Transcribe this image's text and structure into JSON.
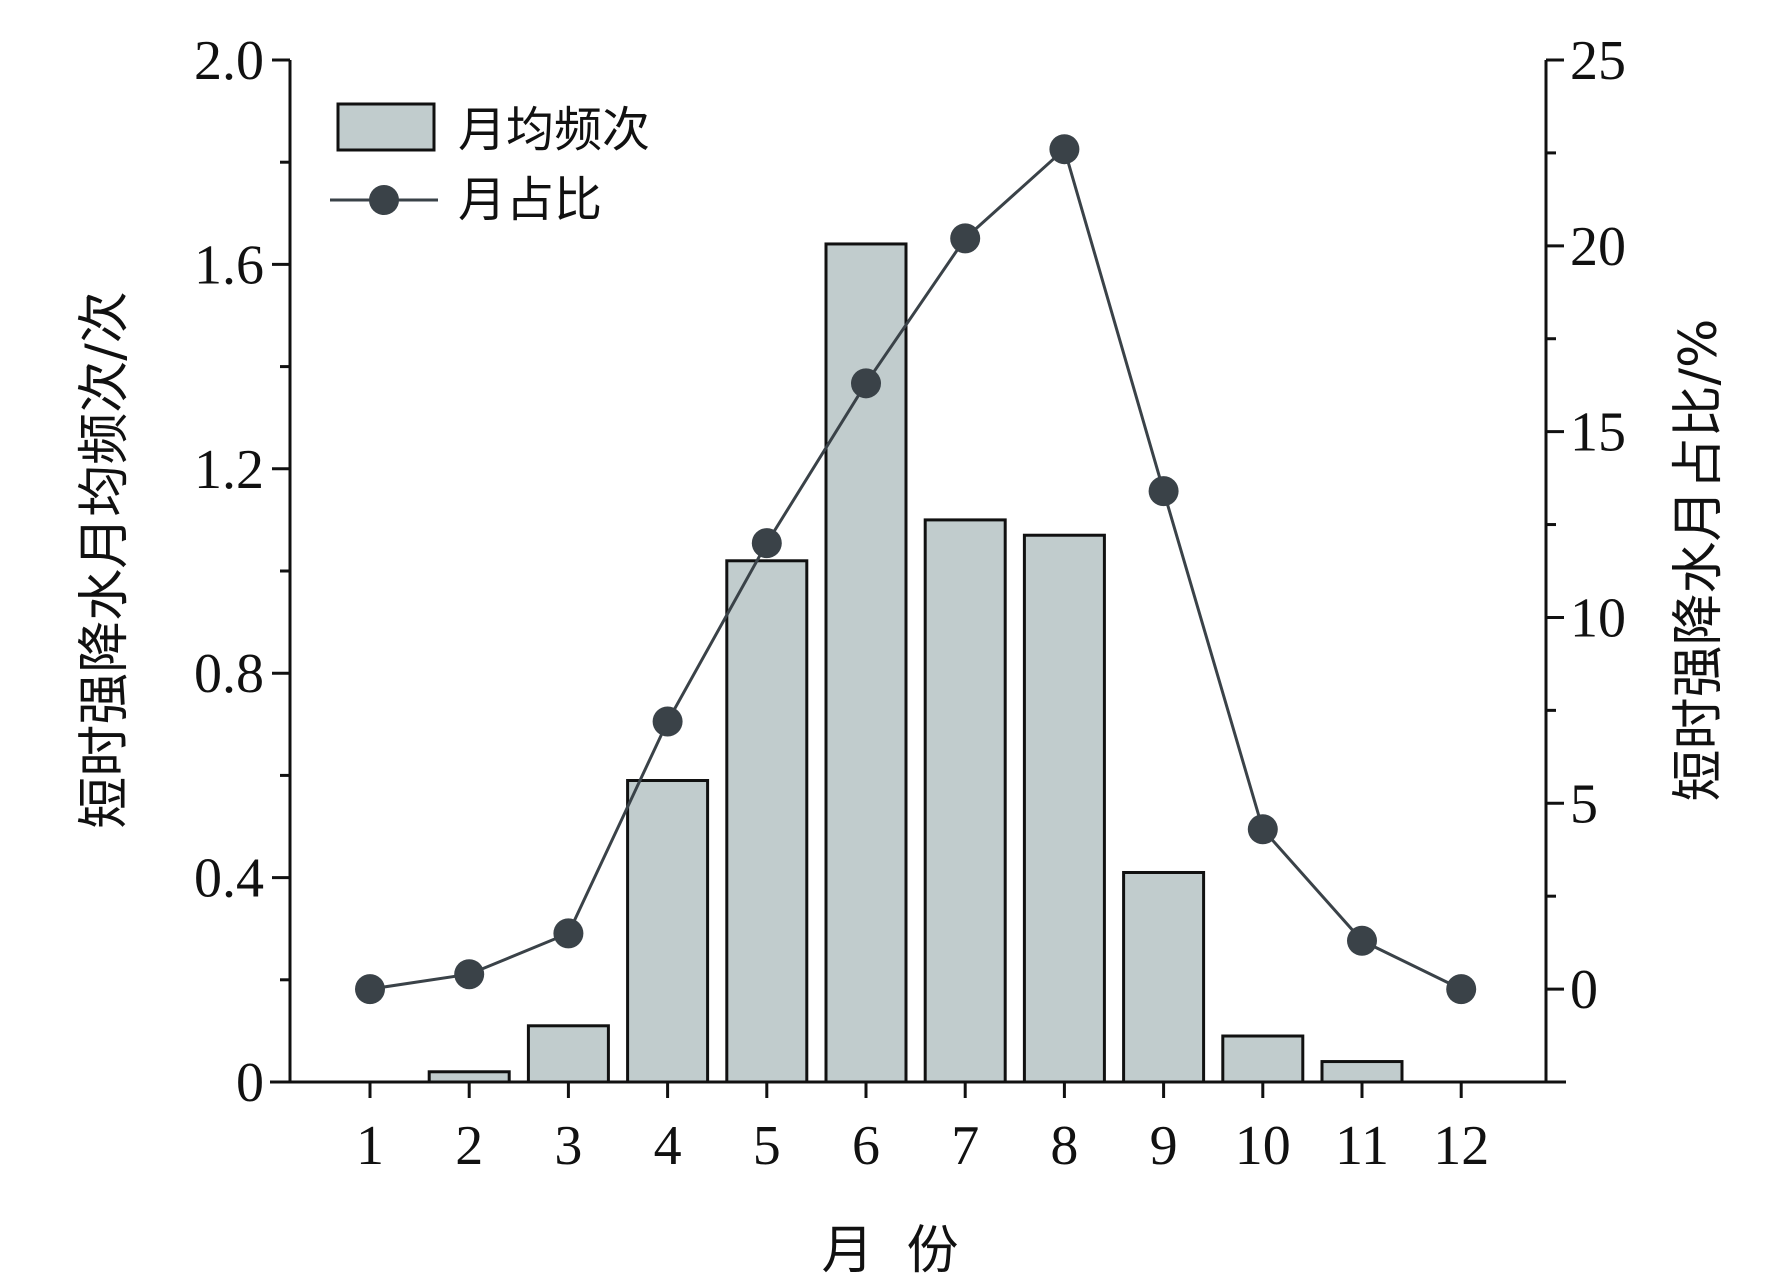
{
  "chart_data": {
    "type": "bar",
    "categories": [
      "1",
      "2",
      "3",
      "4",
      "5",
      "6",
      "7",
      "8",
      "9",
      "10",
      "11",
      "12"
    ],
    "xlabel": "月  份",
    "ylabel_left": "短时强降水月均频次/次",
    "ylabel_right": "短时强降水月占比/%",
    "ylim_left": [
      0,
      2.0
    ],
    "yticks_left": [
      "0",
      "0.4",
      "0.8",
      "1.2",
      "1.6",
      "2.0"
    ],
    "ylim_right": [
      -2.5,
      25
    ],
    "yticks_right": [
      "0",
      "5",
      "10",
      "15",
      "20",
      "25"
    ],
    "legend_position": "top-left",
    "series": [
      {
        "name": "月均频次",
        "type": "bar",
        "axis": "left",
        "color": "#c1cccd",
        "values": [
          0,
          0.02,
          0.11,
          0.59,
          1.02,
          1.64,
          1.1,
          1.07,
          0.41,
          0.09,
          0.04,
          0
        ]
      },
      {
        "name": "月占比",
        "type": "line",
        "axis": "right",
        "color": "#3a4248",
        "values": [
          0,
          0.4,
          1.5,
          7.2,
          12.0,
          16.3,
          20.2,
          22.6,
          13.4,
          4.3,
          1.3,
          0
        ]
      }
    ]
  }
}
